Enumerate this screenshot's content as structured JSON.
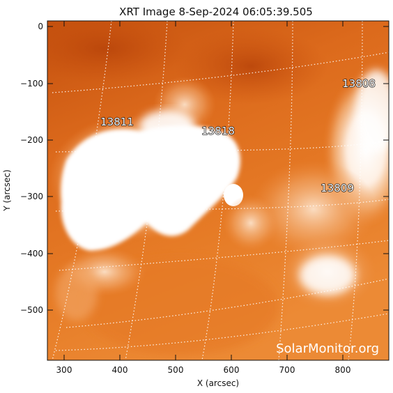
{
  "title": "XRT Image   8-Sep-2024 06:05:39.505",
  "x_axis_label": "X (arcsec)",
  "y_axis_label": "Y (arcsec)",
  "x_ticks": [
    "300",
    "400",
    "500",
    "600",
    "700",
    "800"
  ],
  "y_ticks": [
    "0",
    "−100",
    "−200",
    "−300",
    "−400",
    "−500"
  ],
  "active_regions": [
    {
      "id": "13811"
    },
    {
      "id": "13818"
    },
    {
      "id": "13808"
    },
    {
      "id": "13809"
    }
  ],
  "watermark": "SolarMonitor.org",
  "colors": {
    "background": "#ffffff",
    "sun_dark": "#c8500a",
    "sun_mid": "#e8781e",
    "sun_bright": "#ffffff",
    "axis": "#111111"
  }
}
